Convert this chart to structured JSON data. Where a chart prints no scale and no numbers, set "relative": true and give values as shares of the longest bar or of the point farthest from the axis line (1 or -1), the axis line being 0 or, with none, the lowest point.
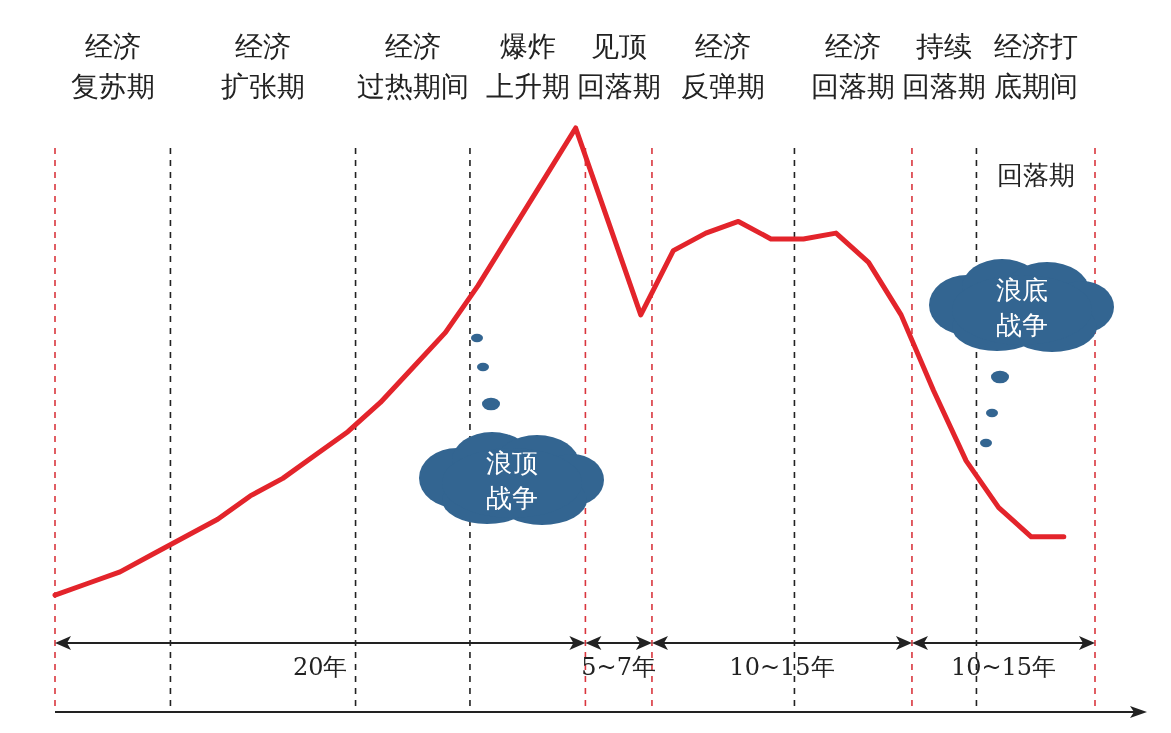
{
  "chart_data": {
    "type": "line",
    "relative": true,
    "color": "#e3242b",
    "categories": [
      null,
      null,
      null,
      null,
      null,
      null,
      null,
      null,
      null,
      null,
      null,
      null,
      null,
      null,
      null,
      null,
      null,
      null,
      null,
      null,
      null,
      null,
      null,
      null,
      null,
      null,
      null,
      null,
      null,
      null,
      null,
      null
    ],
    "values": [
      0.2,
      0.22,
      0.24,
      0.27,
      0.3,
      0.33,
      0.37,
      0.4,
      0.44,
      0.48,
      0.53,
      0.59,
      0.65,
      0.73,
      0.82,
      0.91,
      1.0,
      0.84,
      0.68,
      0.79,
      0.82,
      0.84,
      0.81,
      0.81,
      0.82,
      0.77,
      0.68,
      0.55,
      0.43,
      0.35,
      0.3,
      0.3
    ],
    "grid": true,
    "annotations": [
      "经济复苏期",
      "经济扩张期",
      "经济过热期间",
      "爆炸上升期",
      "见顶回落期",
      "经济反弹期",
      "经济回落期",
      "持续回落期",
      "经济打底期间",
      "回落期",
      "20年",
      "5~7年",
      "10~15年",
      "10~15年",
      "浪顶战争",
      "浪底战争"
    ]
  }
}
